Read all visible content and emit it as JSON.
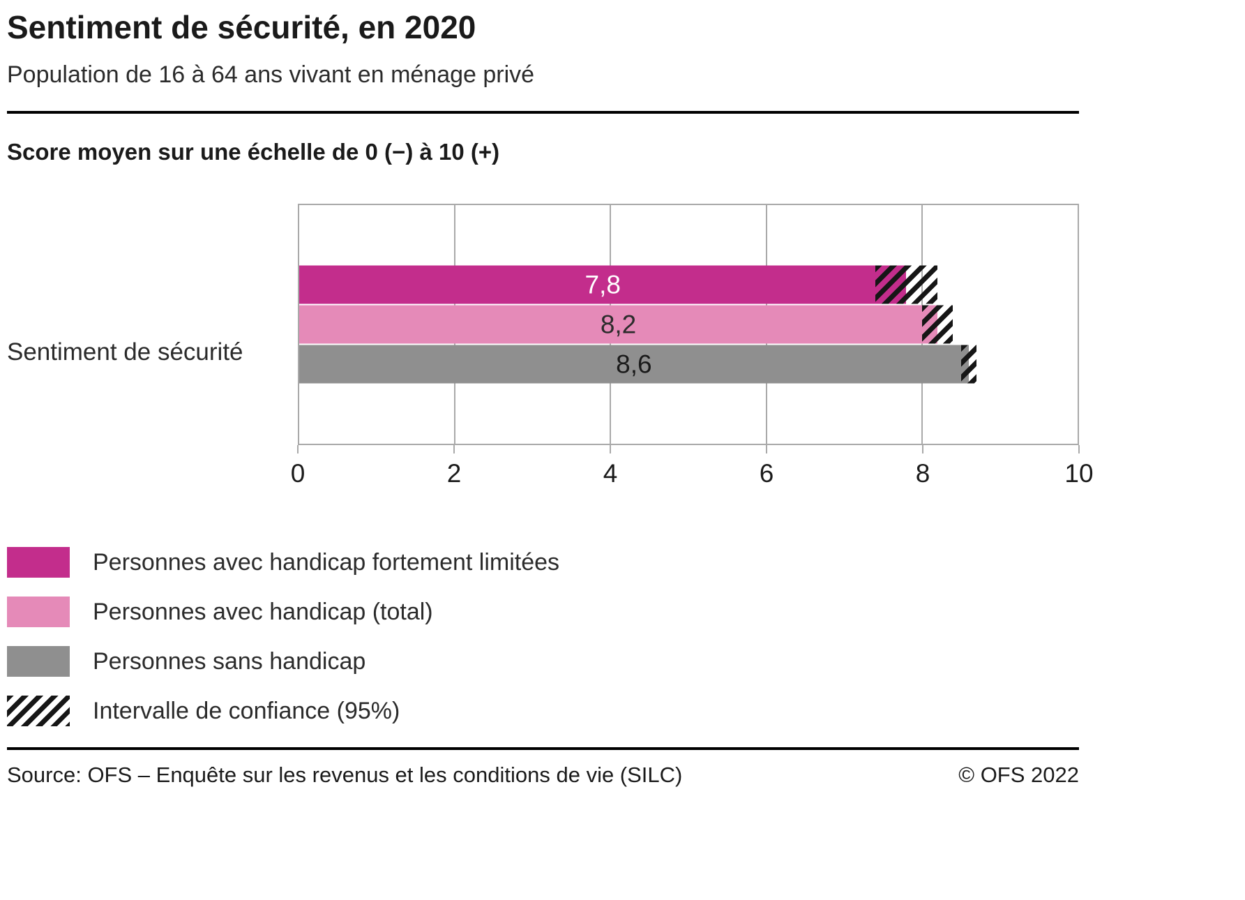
{
  "header": {
    "title": "Sentiment de sécurité, en 2020",
    "subtitle": "Population de 16 à 64 ans vivant en ménage privé"
  },
  "chart_data": {
    "type": "bar",
    "orientation": "horizontal",
    "axis_title": "Score moyen sur une échelle de 0 (−) à 10 (+)",
    "category": "Sentiment de sécurité",
    "xlim": [
      0,
      10
    ],
    "xticks": [
      0,
      2,
      4,
      6,
      8,
      10
    ],
    "grid": true,
    "series": [
      {
        "name": "Personnes avec handicap fortement limitées",
        "value": 7.8,
        "value_label": "7,8",
        "ci": [
          7.4,
          8.2
        ],
        "color": "#c32d8c",
        "value_label_color": "#ffffff"
      },
      {
        "name": "Personnes avec handicap (total)",
        "value": 8.2,
        "value_label": "8,2",
        "ci": [
          8.0,
          8.4
        ],
        "color": "#e58ab8",
        "value_label_color": "#2b2b2b"
      },
      {
        "name": "Personnes sans handicap",
        "value": 8.6,
        "value_label": "8,6",
        "ci": [
          8.5,
          8.7
        ],
        "color": "#8f8f8f",
        "value_label_color": "#1a1a1a"
      }
    ],
    "legend": [
      {
        "label": "Personnes avec handicap fortement limitées",
        "swatch": "solid",
        "color": "#c32d8c"
      },
      {
        "label": "Personnes avec handicap (total)",
        "swatch": "solid",
        "color": "#e58ab8"
      },
      {
        "label": "Personnes sans handicap",
        "swatch": "solid",
        "color": "#8f8f8f"
      },
      {
        "label": "Intervalle de confiance (95%)",
        "swatch": "hatch",
        "color": "#161616"
      }
    ],
    "legend_position": "bottom-left"
  },
  "footer": {
    "source": "Source: OFS – Enquête sur les revenus et les conditions de vie (SILC)",
    "copyright": "© OFS 2022"
  }
}
